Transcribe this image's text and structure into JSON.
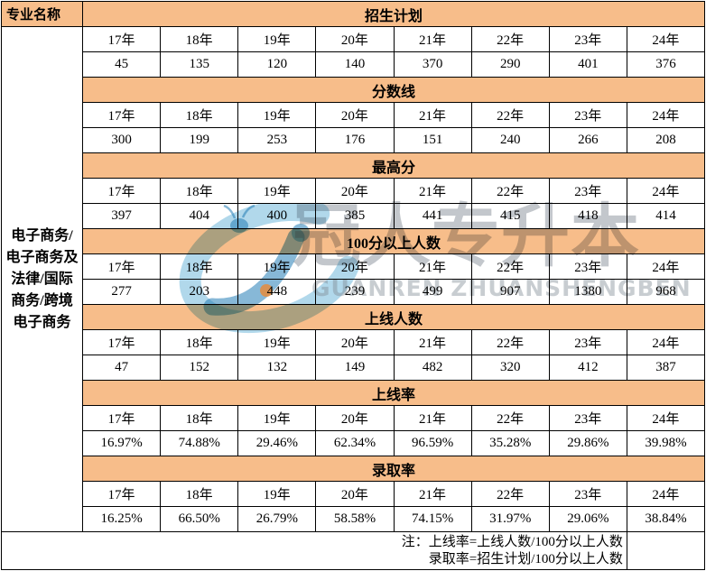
{
  "chart_data": {
    "type": "table",
    "row_header": "专业名称",
    "major": "电子商务/电子商务及法律/国际商务/跨境电子商务",
    "categories": [
      "17年",
      "18年",
      "19年",
      "20年",
      "21年",
      "22年",
      "23年",
      "24年"
    ],
    "series": [
      {
        "name": "招生计划",
        "values": [
          "45",
          "135",
          "120",
          "140",
          "370",
          "290",
          "401",
          "376"
        ]
      },
      {
        "name": "分数线",
        "values": [
          "300",
          "199",
          "253",
          "176",
          "151",
          "240",
          "266",
          "208"
        ]
      },
      {
        "name": "最高分",
        "values": [
          "397",
          "404",
          "400",
          "385",
          "441",
          "415",
          "418",
          "414"
        ]
      },
      {
        "name": "100分以上人数",
        "values": [
          "277",
          "203",
          "448",
          "239",
          "499",
          "907",
          "1380",
          "968"
        ]
      },
      {
        "name": "上线人数",
        "values": [
          "47",
          "152",
          "132",
          "149",
          "482",
          "320",
          "412",
          "387"
        ]
      },
      {
        "name": "上线率",
        "values": [
          "16.97%",
          "74.88%",
          "29.46%",
          "62.34%",
          "96.59%",
          "35.28%",
          "29.86%",
          "39.98%"
        ]
      },
      {
        "name": "录取率",
        "values": [
          "16.25%",
          "66.50%",
          "26.79%",
          "58.58%",
          "74.15%",
          "31.97%",
          "29.06%",
          "38.84%"
        ]
      }
    ],
    "notes": [
      "注：上线率=上线人数/100分以上人数",
      "录取率=招生计划/100分以上人数"
    ],
    "layout_hints": {
      "grid": true,
      "section_band_color": "#F7BD8A",
      "years_shown": 8,
      "sections": 7
    }
  },
  "page": {
    "major_lines": [
      "电子商务/",
      "电子商务及",
      "法律/国际",
      "商务/跨境",
      "电子商务"
    ]
  },
  "watermark": {
    "cn": "冠人专升本",
    "en": "GUANREN ZHUANSHENGBEN"
  },
  "colors": {
    "band_orange": "#F7BD8A",
    "border_black": "#000000",
    "watermark_blue": "#64B2D7",
    "watermark_dark_blue": "#247EB6",
    "watermark_gray": "#9AA4AD",
    "watermark_orange_dot": "#E68C3C",
    "text": "#000000",
    "background": "#FFFFFF"
  }
}
